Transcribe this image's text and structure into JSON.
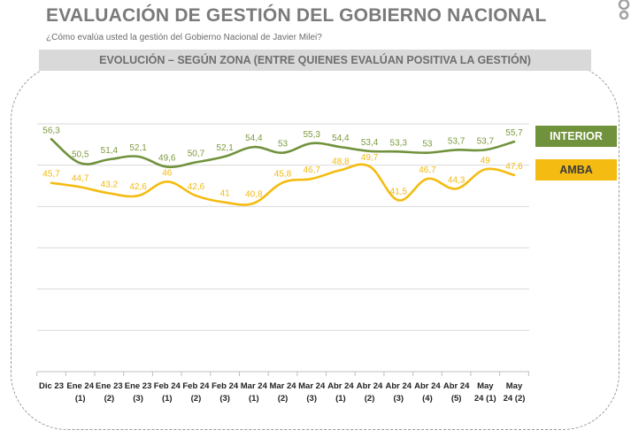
{
  "header": {
    "title": "EVALUACIÓN DE GESTIÓN DEL GOBIERNO NACIONAL",
    "subtitle": "¿Cómo evalúa usted la gestión del Gobierno Nacional de Javier Milei?",
    "band": "EVOLUCIÓN – SEGÚN ZONA (ENTRE QUIENES EVALÚAN POSITIVA LA GESTIÓN)"
  },
  "colors": {
    "interior": "#70923c",
    "amba": "#f4bc12"
  },
  "chart_data": {
    "type": "line",
    "title": "EVOLUCIÓN – SEGÚN ZONA (ENTRE QUIENES EVALÚAN POSITIVA LA GESTIÓN)",
    "categories": [
      [
        "Dic 23",
        ""
      ],
      [
        "Ene 24",
        "(1)"
      ],
      [
        "Ene 23",
        "(2)"
      ],
      [
        "Ene 23",
        "(3)"
      ],
      [
        "Feb 24",
        "(1)"
      ],
      [
        "Feb 24",
        "(2)"
      ],
      [
        "Feb 24",
        "(3)"
      ],
      [
        "Mar 24",
        "(1)"
      ],
      [
        "Mar 24",
        "(2)"
      ],
      [
        "Mar 24",
        "(3)"
      ],
      [
        "Abr 24",
        "(1)"
      ],
      [
        "Abr 24",
        "(2)"
      ],
      [
        "Abr 24",
        "(3)"
      ],
      [
        "Abr 24",
        "(4)"
      ],
      [
        "Abr 24",
        "(5)"
      ],
      [
        "May",
        "24 (1)"
      ],
      [
        "May",
        "24 (2)"
      ]
    ],
    "series": [
      {
        "name": "INTERIOR",
        "values": [
          56.3,
          50.5,
          51.4,
          52.1,
          49.6,
          50.7,
          52.1,
          54.4,
          53,
          55.3,
          54.4,
          53.4,
          53.3,
          53,
          53.7,
          53.7,
          55.7
        ],
        "labels": [
          "56,3",
          "50,5",
          "51,4",
          "52,1",
          "49,6",
          "50,7",
          "52,1",
          "54,4",
          "53",
          "55,3",
          "54,4",
          "53,4",
          "53,3",
          "53",
          "53,7",
          "53,7",
          "55,7"
        ]
      },
      {
        "name": "AMBA",
        "values": [
          45.7,
          44.7,
          43.2,
          42.6,
          46,
          42.6,
          41,
          40.8,
          45.8,
          46.7,
          48.8,
          49.7,
          41.5,
          46.7,
          44.3,
          49,
          47.6
        ],
        "labels": [
          "45,7",
          "44,7",
          "43,2",
          "42,6",
          "46",
          "42,6",
          "41",
          "40,8",
          "45,8",
          "46,7",
          "48,8",
          "49,7",
          "41,5",
          "46,7",
          "44,3",
          "49",
          "47,6"
        ]
      }
    ],
    "ylim": [
      0,
      60
    ],
    "grid": true,
    "legend": "right"
  }
}
